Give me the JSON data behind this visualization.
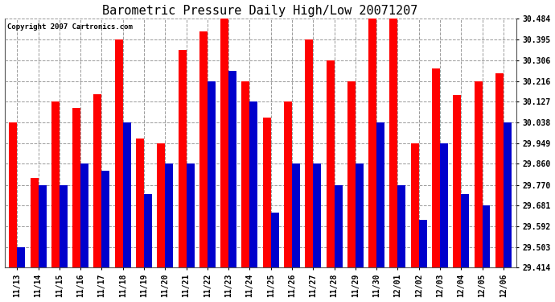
{
  "title": "Barometric Pressure Daily High/Low 20071207",
  "copyright": "Copyright 2007 Cartronics.com",
  "dates": [
    "11/13",
    "11/14",
    "11/15",
    "11/16",
    "11/17",
    "11/18",
    "11/19",
    "11/20",
    "11/21",
    "11/22",
    "11/23",
    "11/24",
    "11/25",
    "11/26",
    "11/27",
    "11/28",
    "11/29",
    "11/30",
    "12/01",
    "12/02",
    "12/03",
    "12/04",
    "12/05",
    "12/06"
  ],
  "highs": [
    30.038,
    29.8,
    30.127,
    30.1,
    30.16,
    30.395,
    29.97,
    29.949,
    30.35,
    30.43,
    30.484,
    30.216,
    30.06,
    30.127,
    30.395,
    30.306,
    30.216,
    30.484,
    30.484,
    29.949,
    30.27,
    30.155,
    30.216,
    30.25
  ],
  "lows": [
    29.503,
    29.77,
    29.77,
    29.86,
    29.83,
    30.038,
    29.73,
    29.86,
    29.86,
    30.216,
    30.26,
    30.127,
    29.65,
    29.86,
    29.86,
    29.77,
    29.86,
    30.038,
    29.77,
    29.62,
    29.949,
    29.73,
    29.681,
    30.038
  ],
  "high_color": "#ff0000",
  "low_color": "#0000cc",
  "bg_color": "#ffffff",
  "plot_bg_color": "#ffffff",
  "grid_color": "#999999",
  "yticks": [
    29.414,
    29.503,
    29.592,
    29.681,
    29.77,
    29.86,
    29.949,
    30.038,
    30.127,
    30.216,
    30.306,
    30.395,
    30.484
  ],
  "ylim": [
    29.414,
    30.484
  ],
  "bar_width": 0.38,
  "title_fontsize": 11,
  "tick_fontsize": 7,
  "copyright_fontsize": 6.5
}
